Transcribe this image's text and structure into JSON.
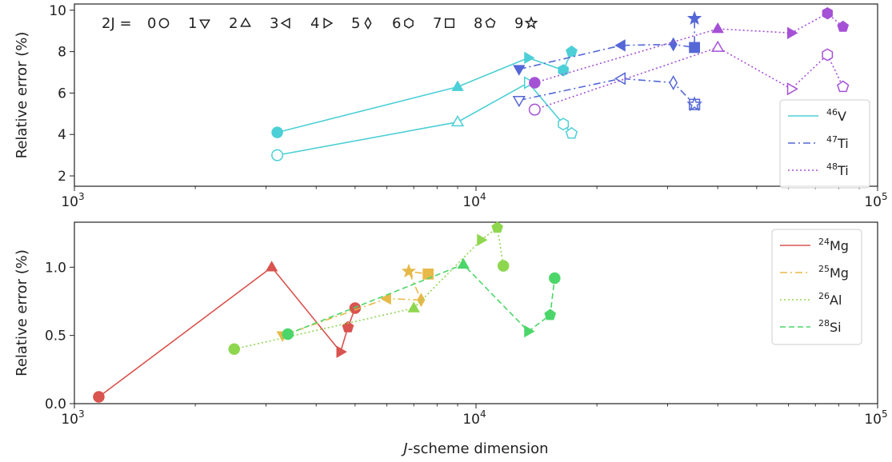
{
  "chart_data": [
    {
      "type": "line",
      "panel": "top",
      "xscale": "log",
      "xlim": [
        1000,
        100000
      ],
      "ylim": [
        1.5,
        10.3
      ],
      "ylabel": "Relative error (%)",
      "xlabel": "",
      "yticks": [
        "2",
        "4",
        "6",
        "8",
        "10"
      ],
      "xticks": [
        {
          "base": "10",
          "exp": "3"
        },
        {
          "base": "10",
          "exp": "4"
        },
        {
          "base": "10",
          "exp": "5"
        }
      ],
      "spin_key": {
        "prefix": "2J = ",
        "entries": [
          {
            "label": "0",
            "marker": "circle"
          },
          {
            "label": "1",
            "marker": "triangle_down"
          },
          {
            "label": "2",
            "marker": "triangle_up"
          },
          {
            "label": "3",
            "marker": "triangle_left"
          },
          {
            "label": "4",
            "marker": "triangle_right"
          },
          {
            "label": "5",
            "marker": "diamond"
          },
          {
            "label": "6",
            "marker": "hexagon"
          },
          {
            "label": "7",
            "marker": "square"
          },
          {
            "label": "8",
            "marker": "pentagon"
          },
          {
            "label": "9",
            "marker": "star"
          }
        ]
      },
      "legend": "right",
      "series": [
        {
          "mass": "46",
          "element": "V",
          "color": "#4ccfd6",
          "dash": "solid",
          "filled": true,
          "points": [
            {
              "x": 3200,
              "y": 4.1,
              "m": "circle"
            },
            {
              "x": 9000,
              "y": 6.3,
              "m": "triangle_up"
            },
            {
              "x": 13500,
              "y": 7.7,
              "m": "triangle_right"
            },
            {
              "x": 16500,
              "y": 7.1,
              "m": "hexagon"
            },
            {
              "x": 17300,
              "y": 8.0,
              "m": "pentagon"
            }
          ]
        },
        {
          "mass": "46",
          "element": "V",
          "color": "#4ccfd6",
          "dash": "solid",
          "filled": false,
          "points": [
            {
              "x": 3200,
              "y": 3.0,
              "m": "circle"
            },
            {
              "x": 9000,
              "y": 4.6,
              "m": "triangle_up"
            },
            {
              "x": 13500,
              "y": 6.5,
              "m": "triangle_right"
            },
            {
              "x": 16500,
              "y": 4.5,
              "m": "hexagon"
            },
            {
              "x": 17300,
              "y": 4.05,
              "m": "pentagon"
            }
          ]
        },
        {
          "mass": "47",
          "element": "Ti",
          "color": "#5567d6",
          "dash": "dashdot",
          "filled": true,
          "points": [
            {
              "x": 12800,
              "y": 7.15,
              "m": "triangle_down"
            },
            {
              "x": 23000,
              "y": 8.3,
              "m": "triangle_left"
            },
            {
              "x": 31000,
              "y": 8.35,
              "m": "diamond"
            },
            {
              "x": 35000,
              "y": 8.2,
              "m": "square"
            },
            {
              "x": 35000,
              "y": 9.6,
              "m": "star"
            }
          ]
        },
        {
          "mass": "47",
          "element": "Ti",
          "color": "#5567d6",
          "dash": "dashdot",
          "filled": false,
          "points": [
            {
              "x": 12800,
              "y": 5.65,
              "m": "triangle_down"
            },
            {
              "x": 23000,
              "y": 6.7,
              "m": "triangle_left"
            },
            {
              "x": 31000,
              "y": 6.5,
              "m": "diamond"
            },
            {
              "x": 35000,
              "y": 5.45,
              "m": "square"
            },
            {
              "x": 35000,
              "y": 5.45,
              "m": "star"
            }
          ]
        },
        {
          "mass": "48",
          "element": "Ti",
          "color": "#a551d6",
          "dash": "dotted",
          "filled": true,
          "points": [
            {
              "x": 14000,
              "y": 6.5,
              "m": "circle"
            },
            {
              "x": 40000,
              "y": 9.1,
              "m": "triangle_up"
            },
            {
              "x": 61000,
              "y": 8.9,
              "m": "triangle_right"
            },
            {
              "x": 75000,
              "y": 9.85,
              "m": "hexagon"
            },
            {
              "x": 82000,
              "y": 9.2,
              "m": "pentagon"
            }
          ]
        },
        {
          "mass": "48",
          "element": "Ti",
          "color": "#a551d6",
          "dash": "dotted",
          "filled": false,
          "points": [
            {
              "x": 14000,
              "y": 5.2,
              "m": "circle"
            },
            {
              "x": 40000,
              "y": 8.2,
              "m": "triangle_up"
            },
            {
              "x": 61000,
              "y": 6.2,
              "m": "triangle_right"
            },
            {
              "x": 75000,
              "y": 7.85,
              "m": "hexagon"
            },
            {
              "x": 82000,
              "y": 6.3,
              "m": "pentagon"
            }
          ]
        }
      ]
    },
    {
      "type": "line",
      "panel": "bottom",
      "xscale": "log",
      "xlim": [
        1000,
        100000
      ],
      "ylim": [
        0,
        1.33
      ],
      "ylabel": "Relative error (%)",
      "xlabel": "J-scheme dimension",
      "xlabel_italic": "J",
      "xlabel_rest": "-scheme dimension",
      "yticks": [
        "0.0",
        "0.5",
        "1.0"
      ],
      "xticks": [
        {
          "base": "10",
          "exp": "3"
        },
        {
          "base": "10",
          "exp": "4"
        },
        {
          "base": "10",
          "exp": "5"
        }
      ],
      "legend": "top-right",
      "series": [
        {
          "mass": "24",
          "element": "Mg",
          "color": "#d9534f",
          "dash": "solid",
          "filled": true,
          "points": [
            {
              "x": 1150,
              "y": 0.05,
              "m": "circle"
            },
            {
              "x": 3100,
              "y": 1.0,
              "m": "triangle_up"
            },
            {
              "x": 4600,
              "y": 0.38,
              "m": "triangle_right"
            },
            {
              "x": 4800,
              "y": 0.56,
              "m": "pentagon"
            },
            {
              "x": 5000,
              "y": 0.7,
              "m": "circle"
            }
          ]
        },
        {
          "mass": "25",
          "element": "Mg",
          "color": "#e6b948",
          "dash": "dashdot",
          "filled": true,
          "points": [
            {
              "x": 3300,
              "y": 0.5,
              "m": "triangle_down"
            },
            {
              "x": 6000,
              "y": 0.77,
              "m": "triangle_left"
            },
            {
              "x": 7300,
              "y": 0.76,
              "m": "diamond"
            },
            {
              "x": 6800,
              "y": 0.97,
              "m": "star"
            },
            {
              "x": 7600,
              "y": 0.95,
              "m": "square"
            }
          ]
        },
        {
          "mass": "26",
          "element": "Al",
          "color": "#8fd64f",
          "dash": "dotted",
          "filled": true,
          "points": [
            {
              "x": 2500,
              "y": 0.4,
              "m": "circle"
            },
            {
              "x": 7000,
              "y": 0.7,
              "m": "triangle_up"
            },
            {
              "x": 10300,
              "y": 1.2,
              "m": "triangle_right"
            },
            {
              "x": 11300,
              "y": 1.29,
              "m": "pentagon"
            },
            {
              "x": 11700,
              "y": 1.01,
              "m": "circle"
            }
          ]
        },
        {
          "mass": "28",
          "element": "Si",
          "color": "#4cd66a",
          "dash": "dashed",
          "filled": true,
          "points": [
            {
              "x": 3400,
              "y": 0.51,
              "m": "circle"
            },
            {
              "x": 9300,
              "y": 1.02,
              "m": "triangle_up"
            },
            {
              "x": 13500,
              "y": 0.53,
              "m": "triangle_right"
            },
            {
              "x": 15300,
              "y": 0.65,
              "m": "pentagon"
            },
            {
              "x": 15700,
              "y": 0.92,
              "m": "circle"
            }
          ]
        }
      ]
    }
  ]
}
